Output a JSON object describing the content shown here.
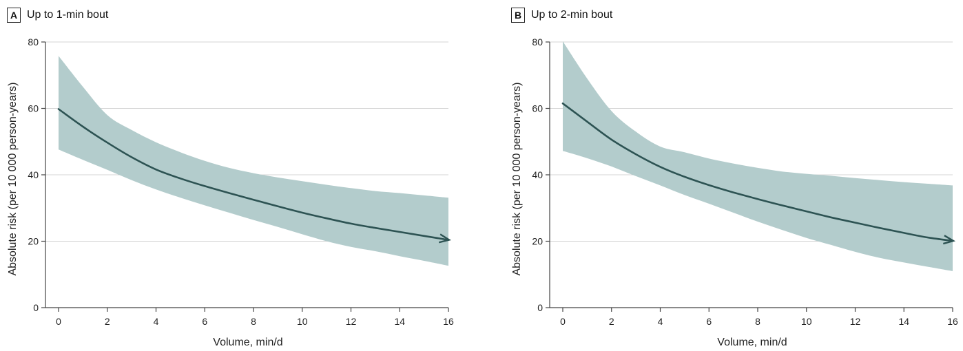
{
  "colors": {
    "band": "#b3cccc",
    "line": "#2d5353",
    "grid": "#d4d4d4",
    "axis": "#444444"
  },
  "panels": [
    {
      "letter": "A",
      "title": "Up to 1-min bout",
      "chart_data": {
        "type": "line",
        "xlabel": "Volume, min/d",
        "ylabel": "Absolute risk (per 10 000 person-years)",
        "xlim": [
          0,
          16
        ],
        "ylim": [
          0,
          80
        ],
        "xticks": [
          "0",
          "2",
          "4",
          "6",
          "8",
          "10",
          "12",
          "14",
          "16"
        ],
        "yticks": [
          "0",
          "20",
          "40",
          "60",
          "80"
        ],
        "grid": "horizontal",
        "x": [
          0,
          1,
          2,
          3,
          4,
          5,
          6,
          7,
          8,
          9,
          10,
          11,
          12,
          13,
          14,
          15,
          16
        ],
        "estimate": [
          59.8,
          54.5,
          49.7,
          45.3,
          41.6,
          38.9,
          36.6,
          34.5,
          32.5,
          30.5,
          28.6,
          26.9,
          25.3,
          24.0,
          22.8,
          21.6,
          20.4
        ],
        "lower": [
          47.6,
          44.5,
          41.5,
          38.4,
          35.6,
          33.1,
          30.8,
          28.6,
          26.4,
          24.3,
          22.1,
          20.0,
          18.3,
          17.0,
          15.5,
          14.1,
          12.6
        ],
        "upper": [
          75.8,
          66.5,
          58.0,
          53.5,
          49.8,
          46.8,
          44.2,
          42.1,
          40.5,
          39.2,
          38.1,
          37.0,
          36.0,
          35.1,
          34.5,
          33.8,
          33.1
        ]
      }
    },
    {
      "letter": "B",
      "title": "Up to 2-min bout",
      "chart_data": {
        "type": "line",
        "xlabel": "Volume, min/d",
        "ylabel": "Absolute risk (per 10 000 person-years)",
        "xlim": [
          0,
          16
        ],
        "ylim": [
          0,
          80
        ],
        "xticks": [
          "0",
          "2",
          "4",
          "6",
          "8",
          "10",
          "12",
          "14",
          "16"
        ],
        "yticks": [
          "0",
          "20",
          "40",
          "60",
          "80"
        ],
        "grid": "horizontal",
        "x": [
          0,
          1,
          2,
          3,
          4,
          5,
          6,
          7,
          8,
          9,
          10,
          11,
          12,
          13,
          14,
          15,
          16
        ],
        "estimate": [
          61.5,
          56.0,
          50.6,
          46.2,
          42.4,
          39.4,
          36.9,
          34.7,
          32.7,
          30.8,
          29.0,
          27.2,
          25.6,
          24.0,
          22.5,
          21.1,
          20.1
        ],
        "lower": [
          47.2,
          45.0,
          42.5,
          39.6,
          36.8,
          33.9,
          31.3,
          28.6,
          25.9,
          23.4,
          21.0,
          18.9,
          16.8,
          15.0,
          13.6,
          12.3,
          11.0
        ],
        "upper": [
          80.2,
          69.0,
          59.2,
          53.0,
          48.5,
          46.8,
          44.9,
          43.4,
          42.1,
          41.0,
          40.3,
          39.7,
          39.0,
          38.4,
          37.8,
          37.3,
          36.8
        ]
      }
    }
  ]
}
